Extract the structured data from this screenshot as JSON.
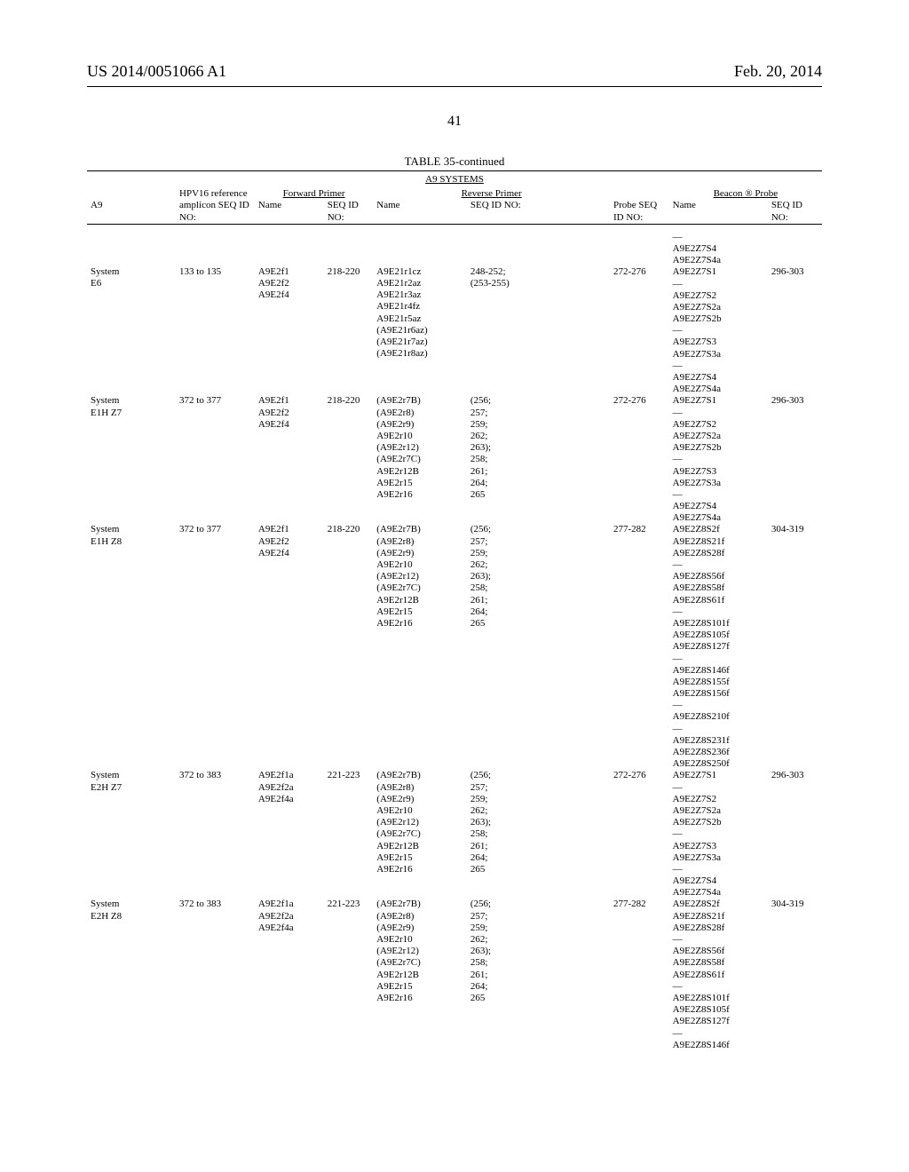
{
  "header": {
    "left": "US 2014/0051066 A1",
    "right": "Feb. 20, 2014"
  },
  "page_number": "41",
  "table": {
    "caption": "TABLE 35-continued",
    "subcaption": "A9 SYSTEMS",
    "columns": {
      "a9": "A9",
      "hpv_ref": "HPV16 reference",
      "amplicon": "amplicon SEQ ID NO:",
      "fwd_header": "Forward Primer",
      "fwd_name": "Name",
      "fwd_seq": "SEQ ID NO:",
      "rev_header": "Reverse Primer",
      "rev_name": "Name",
      "rev_seq": "SEQ ID NO:",
      "probe_seq": "Probe SEQ ID NO:",
      "beacon_header": "Beacon ® Probe",
      "beacon_name": "Name",
      "beacon_seq": "SEQ ID NO:"
    },
    "rows": [
      {
        "a9": "System E6",
        "amplicon": "133 to 135",
        "fwd_names": [
          "A9E2f1",
          "A9E2f2",
          "A9E2f4"
        ],
        "fwd_seq": "218-220",
        "rev_names": [
          "A9E21r1cz",
          "A9E21r2az",
          "A9E21r3az",
          "A9E21r4fz",
          "A9E21r5az",
          "(A9E21r6az)",
          "(A9E21r7az)",
          "(A9E21r8az)"
        ],
        "rev_seq": "248-252; (253-255)",
        "probe_seq": "272-276",
        "beacon_pre": [
          "—",
          "A9E2Z7S4",
          "A9E2Z7S4a"
        ],
        "beacon_names": [
          "A9E2Z7S1",
          "—",
          "A9E2Z7S2",
          "A9E2Z7S2a",
          "A9E2Z7S2b",
          "—",
          "A9E2Z7S3",
          "A9E2Z7S3a",
          "—",
          "A9E2Z7S4",
          "A9E2Z7S4a"
        ],
        "beacon_seq": "296-303"
      },
      {
        "a9": "System E1H Z7",
        "amplicon": "372 to 377",
        "fwd_names": [
          "A9E2f1",
          "A9E2f2",
          "A9E2f4"
        ],
        "fwd_seq": "218-220",
        "rev_names": [
          "(A9E2r7B)",
          "(A9E2r8)",
          "(A9E2r9)",
          "A9E2r10",
          "(A9E2r12)",
          "(A9E2r7C)",
          "A9E2r12B",
          "A9E2r15",
          "A9E2r16"
        ],
        "rev_seq": "(256; 257; 259; 262; 263); 258; 261; 264; 265",
        "probe_seq": "272-276",
        "beacon_names": [
          "A9E2Z7S1",
          "—",
          "A9E2Z7S2",
          "A9E2Z7S2a",
          "A9E2Z7S2b",
          "—",
          "A9E2Z7S3",
          "A9E2Z7S3a",
          "—",
          "A9E2Z7S4",
          "A9E2Z7S4a"
        ],
        "beacon_seq": "296-303"
      },
      {
        "a9": "System E1H Z8",
        "amplicon": "372 to 377",
        "fwd_names": [
          "A9E2f1",
          "A9E2f2",
          "A9E2f4"
        ],
        "fwd_seq": "218-220",
        "rev_names": [
          "(A9E2r7B)",
          "(A9E2r8)",
          "(A9E2r9)",
          "A9E2r10",
          "(A9E2r12)",
          "(A9E2r7C)",
          "A9E2r12B",
          "A9E2r15",
          "A9E2r16"
        ],
        "rev_seq": "(256; 257; 259; 262; 263); 258; 261; 264; 265",
        "probe_seq": "277-282",
        "beacon_names": [
          "A9E2Z8S2f",
          "A9E2Z8S21f",
          "A9E2Z8S28f",
          "—",
          "A9E2Z8S56f",
          "A9E2Z8S58f",
          "A9E2Z8S61f",
          "—",
          "A9E2Z8S101f",
          "A9E2Z8S105f",
          "A9E2Z8S127f",
          "—",
          "A9E2Z8S146f",
          "A9E2Z8S155f",
          "A9E2Z8S156f",
          "—",
          "A9E2Z8S210f",
          "—",
          "A9E2Z8S231f",
          "A9E2Z8S236f",
          "A9E2Z8S250f"
        ],
        "beacon_seq": "304-319"
      },
      {
        "a9": "System E2H Z7",
        "amplicon": "372 to 383",
        "fwd_names": [
          "A9E2f1a",
          "A9E2f2a",
          "A9E2f4a"
        ],
        "fwd_seq": "221-223",
        "rev_names": [
          "(A9E2r7B)",
          "(A9E2r8)",
          "(A9E2r9)",
          "A9E2r10",
          "(A9E2r12)",
          "(A9E2r7C)",
          "A9E2r12B",
          "A9E2r15",
          "A9E2r16"
        ],
        "rev_seq": "(256; 257; 259; 262; 263); 258; 261; 264; 265",
        "probe_seq": "272-276",
        "beacon_names": [
          "A9E2Z7S1",
          "—",
          "A9E2Z7S2",
          "A9E2Z7S2a",
          "A9E2Z7S2b",
          "—",
          "A9E2Z7S3",
          "A9E2Z7S3a",
          "—",
          "A9E2Z7S4",
          "A9E2Z7S4a"
        ],
        "beacon_seq": "296-303"
      },
      {
        "a9": "System E2H Z8",
        "amplicon": "372 to 383",
        "fwd_names": [
          "A9E2f1a",
          "A9E2f2a",
          "A9E2f4a"
        ],
        "fwd_seq": "221-223",
        "rev_names": [
          "(A9E2r7B)",
          "(A9E2r8)",
          "(A9E2r9)",
          "A9E2r10",
          "(A9E2r12)",
          "(A9E2r7C)",
          "A9E2r12B",
          "A9E2r15",
          "A9E2r16"
        ],
        "rev_seq": "(256; 257; 259; 262; 263); 258; 261; 264; 265",
        "probe_seq": "277-282",
        "beacon_names": [
          "A9E2Z8S2f",
          "A9E2Z8S21f",
          "A9E2Z8S28f",
          "—",
          "A9E2Z8S56f",
          "A9E2Z8S58f",
          "A9E2Z8S61f",
          "—",
          "A9E2Z8S101f",
          "A9E2Z8S105f",
          "A9E2Z8S127f",
          "—",
          "A9E2Z8S146f"
        ],
        "beacon_seq": "304-319"
      }
    ]
  }
}
